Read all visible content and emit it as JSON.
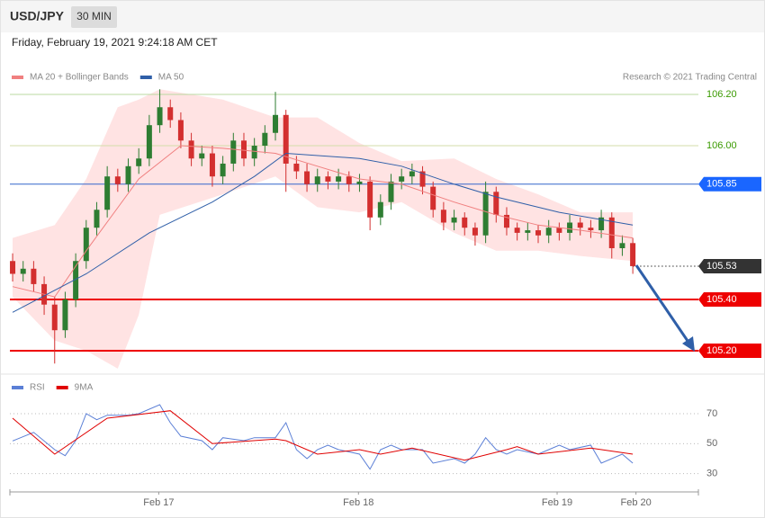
{
  "header": {
    "symbol": "USD/JPY",
    "interval": "30 MIN",
    "datetime": "Friday, February 19, 2021 9:24:18 AM CET"
  },
  "chart_data": [
    {
      "type": "candlestick",
      "credit": "Research © 2021 Trading Central",
      "xlim": [
        -0.26,
        65.24
      ],
      "ylim": [
        105.13,
        106.36
      ],
      "up_color": "#2e7d32",
      "down_color": "#d32f2f",
      "open": [
        105.55,
        105.5,
        105.52,
        105.46,
        105.38,
        105.28,
        105.4,
        105.55,
        105.68,
        105.75,
        105.88,
        105.85,
        105.92,
        105.95,
        106.08,
        106.15,
        106.1,
        106.02,
        105.95,
        105.97,
        105.88,
        105.93,
        106.02,
        105.95,
        106.0,
        106.05,
        106.12,
        105.93,
        105.9,
        105.85,
        105.88,
        105.86,
        105.88,
        105.85,
        105.86,
        105.72,
        105.78,
        105.86,
        105.88,
        105.9,
        105.84,
        105.75,
        105.7,
        105.72,
        105.68,
        105.65,
        105.82,
        105.73,
        105.68,
        105.66,
        105.67,
        105.65,
        105.68,
        105.66,
        105.7,
        105.68,
        105.67,
        105.72,
        105.6,
        105.62
      ],
      "high": [
        105.58,
        105.55,
        105.55,
        105.49,
        105.41,
        105.43,
        105.58,
        105.71,
        105.78,
        105.92,
        105.91,
        105.95,
        105.99,
        106.12,
        106.22,
        106.18,
        106.13,
        106.05,
        106.0,
        106.0,
        105.96,
        106.05,
        106.05,
        106.03,
        106.08,
        106.21,
        106.14,
        105.96,
        105.93,
        105.91,
        105.9,
        105.91,
        105.9,
        105.89,
        105.88,
        105.81,
        105.89,
        105.91,
        105.93,
        105.92,
        105.86,
        105.78,
        105.75,
        105.74,
        105.7,
        105.86,
        105.84,
        105.76,
        105.7,
        105.7,
        105.69,
        105.71,
        105.7,
        105.73,
        105.72,
        105.71,
        105.75,
        105.74,
        105.65,
        105.64
      ],
      "low": [
        105.47,
        105.47,
        105.43,
        105.34,
        105.15,
        105.25,
        105.37,
        105.52,
        105.65,
        105.72,
        105.82,
        105.82,
        105.89,
        105.92,
        106.05,
        106.07,
        105.99,
        105.92,
        105.92,
        105.84,
        105.85,
        105.9,
        105.92,
        105.92,
        105.97,
        106.02,
        105.82,
        105.87,
        105.82,
        105.82,
        105.83,
        105.83,
        105.82,
        105.82,
        105.67,
        105.69,
        105.75,
        105.83,
        105.85,
        105.81,
        105.72,
        105.67,
        105.67,
        105.65,
        105.61,
        105.62,
        105.7,
        105.65,
        105.63,
        105.63,
        105.62,
        105.62,
        105.63,
        105.63,
        105.65,
        105.64,
        105.64,
        105.56,
        105.57,
        105.5
      ],
      "close": [
        105.5,
        105.52,
        105.46,
        105.38,
        105.28,
        105.4,
        105.55,
        105.68,
        105.75,
        105.88,
        105.85,
        105.92,
        105.95,
        106.08,
        106.15,
        106.1,
        106.02,
        105.95,
        105.97,
        105.88,
        105.93,
        106.02,
        105.95,
        106.0,
        106.05,
        106.12,
        105.93,
        105.9,
        105.85,
        105.88,
        105.86,
        105.88,
        105.85,
        105.86,
        105.72,
        105.78,
        105.86,
        105.88,
        105.9,
        105.84,
        105.75,
        105.7,
        105.72,
        105.68,
        105.65,
        105.82,
        105.73,
        105.68,
        105.66,
        105.67,
        105.65,
        105.68,
        105.66,
        105.7,
        105.68,
        105.67,
        105.72,
        105.6,
        105.62,
        105.53
      ],
      "bollinger": {
        "color": "#ffe3e3",
        "x": [
          0,
          4,
          7,
          10,
          12,
          14,
          20,
          25,
          29,
          33,
          37,
          42,
          46,
          50,
          54,
          59
        ],
        "upper": [
          105.64,
          105.69,
          105.87,
          106.15,
          106.18,
          106.22,
          106.18,
          106.11,
          106.11,
          106.01,
          105.94,
          105.95,
          105.87,
          105.81,
          105.74,
          105.74
        ],
        "lower": [
          105.41,
          105.24,
          105.2,
          105.13,
          105.34,
          105.73,
          105.81,
          105.88,
          105.76,
          105.74,
          105.78,
          105.66,
          105.59,
          105.59,
          105.57,
          105.55
        ]
      },
      "series": [
        {
          "name": "MA 20 + Bollinger Bands",
          "color": "#f08080",
          "x": [
            0,
            4,
            7,
            12,
            16,
            20,
            25,
            29,
            33,
            37,
            42,
            46,
            50,
            54,
            59
          ],
          "values": [
            105.45,
            105.41,
            105.59,
            105.87,
            106.0,
            105.99,
            105.97,
            105.92,
            105.87,
            105.85,
            105.78,
            105.73,
            105.69,
            105.67,
            105.64
          ]
        },
        {
          "name": "MA 50",
          "color": "#2f5fa8",
          "x": [
            0,
            7,
            13,
            19,
            23,
            26,
            33,
            37,
            42,
            46,
            52,
            59
          ],
          "values": [
            105.35,
            105.5,
            105.66,
            105.78,
            105.88,
            105.97,
            105.95,
            105.92,
            105.85,
            105.8,
            105.74,
            105.69
          ]
        }
      ],
      "levels": [
        {
          "value": 106.2,
          "label": "106.20",
          "color": "#3a9a00",
          "line_color": "#b8d8a0",
          "boxed": false,
          "dotted": false
        },
        {
          "value": 106.0,
          "label": "106.00",
          "color": "#3a9a00",
          "line_color": "#d3dca8",
          "boxed": false,
          "dotted": false
        },
        {
          "value": 105.85,
          "color": "#1a66ff",
          "line_color": "#3366cc",
          "boxed": true,
          "dotted": false
        },
        {
          "value": 105.53,
          "color": "#333333",
          "line_color": "#333333",
          "boxed": true,
          "dotted": true
        },
        {
          "value": 105.4,
          "label": "105.40",
          "color": "#ee0000",
          "line_color": "#ee0000",
          "boxed": true,
          "dotted": false
        },
        {
          "value": 105.2,
          "label": "105.20",
          "color": "#ee0000",
          "line_color": "#ee0000",
          "boxed": true,
          "dotted": false
        }
      ]
    },
    {
      "type": "line",
      "xlim": [
        -0.26,
        65.24
      ],
      "ylim": [
        22,
        82
      ],
      "yticks": [
        30,
        50,
        70
      ],
      "xticks": [
        {
          "value": 13.9,
          "label": "Feb 17"
        },
        {
          "value": 32.9,
          "label": "Feb 18"
        },
        {
          "value": 51.8,
          "label": "Feb 19"
        },
        {
          "value": 59.3,
          "label": "Feb 20"
        }
      ],
      "series": [
        {
          "name": "RSI",
          "color": "#5b7fd6",
          "x": [
            0,
            2,
            4,
            5,
            6,
            7,
            8,
            9,
            11,
            12,
            14,
            15,
            16,
            18,
            19,
            20,
            22,
            23,
            25,
            26,
            27,
            28,
            29,
            30,
            31,
            33,
            34,
            35,
            36,
            37,
            39,
            40,
            42,
            43,
            44,
            45,
            46,
            47,
            48,
            50,
            51,
            52,
            53,
            55,
            56,
            58,
            59
          ],
          "values": [
            51.8,
            57.5,
            46,
            42,
            52,
            70,
            66,
            69,
            69,
            70,
            76,
            64,
            55,
            52,
            46,
            54,
            52,
            54,
            54,
            64,
            46,
            40,
            46,
            49,
            46,
            43,
            33,
            46,
            49,
            46,
            46,
            37,
            40,
            37,
            43,
            54,
            46,
            43,
            46,
            43,
            46,
            49,
            46,
            49,
            37,
            43,
            37
          ]
        },
        {
          "name": "9MA",
          "color": "#e00000",
          "x": [
            0,
            4,
            9,
            15,
            19,
            25,
            26,
            29,
            33,
            35,
            38,
            43,
            47,
            48,
            50,
            55,
            59
          ],
          "values": [
            67,
            43,
            67,
            72,
            50,
            53,
            52,
            43,
            46,
            43,
            47,
            39,
            46,
            48,
            43,
            47,
            43
          ]
        }
      ]
    }
  ]
}
